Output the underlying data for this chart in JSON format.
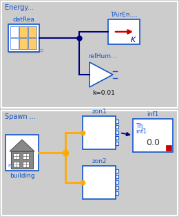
{
  "bg_color": "#cccccc",
  "blue": "#1155cc",
  "dark_blue": "#00007f",
  "orange": "#ffaa00",
  "red": "#cc0000",
  "white": "#ffffff",
  "cell_orange": "#ffcc66",
  "text_blue": "#1155cc",
  "title1": "Energy...",
  "title2": "Spawn ...",
  "label_datRea": "datRea",
  "label_TAirEn": "TAirEn....",
  "label_relHum": "relHum...",
  "label_k001": "k=0.01",
  "label_building": "building",
  "label_zon1": "zon1",
  "label_zon2": "zon2",
  "label_inf1": "inf1"
}
